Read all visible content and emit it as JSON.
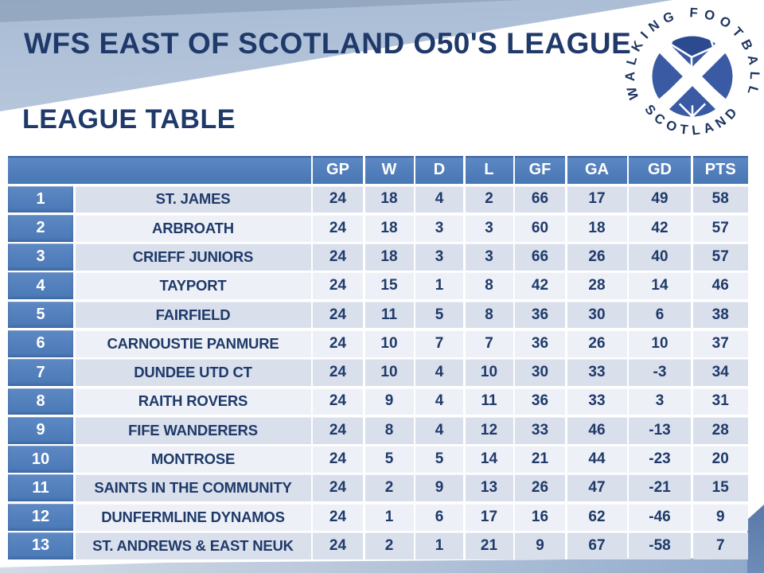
{
  "header": {
    "title": "WFS EAST OF SCOTLAND O50'S LEAGUE",
    "section_title": "LEAGUE TABLE",
    "logo": {
      "arc_top": "WALKING FOOTBALL",
      "arc_bottom": "SCOTLAND"
    }
  },
  "table": {
    "columns": [
      "GP",
      "W",
      "D",
      "L",
      "GF",
      "GA",
      "GD",
      "PTS"
    ],
    "rows": [
      {
        "pos": "1",
        "team": "ST. JAMES",
        "stats": [
          "24",
          "18",
          "4",
          "2",
          "66",
          "17",
          "49",
          "58"
        ]
      },
      {
        "pos": "2",
        "team": "ARBROATH",
        "stats": [
          "24",
          "18",
          "3",
          "3",
          "60",
          "18",
          "42",
          "57"
        ]
      },
      {
        "pos": "3",
        "team": "CRIEFF JUNIORS",
        "stats": [
          "24",
          "18",
          "3",
          "3",
          "66",
          "26",
          "40",
          "57"
        ]
      },
      {
        "pos": "4",
        "team": "TAYPORT",
        "stats": [
          "24",
          "15",
          "1",
          "8",
          "42",
          "28",
          "14",
          "46"
        ]
      },
      {
        "pos": "5",
        "team": "FAIRFIELD",
        "stats": [
          "24",
          "11",
          "5",
          "8",
          "36",
          "30",
          "6",
          "38"
        ]
      },
      {
        "pos": "6",
        "team": "CARNOUSTIE PANMURE",
        "stats": [
          "24",
          "10",
          "7",
          "7",
          "36",
          "26",
          "10",
          "37"
        ]
      },
      {
        "pos": "7",
        "team": "DUNDEE UTD CT",
        "stats": [
          "24",
          "10",
          "4",
          "10",
          "30",
          "33",
          "-3",
          "34"
        ]
      },
      {
        "pos": "8",
        "team": "RAITH ROVERS",
        "stats": [
          "24",
          "9",
          "4",
          "11",
          "36",
          "33",
          "3",
          "31"
        ]
      },
      {
        "pos": "9",
        "team": "FIFE WANDERERS",
        "stats": [
          "24",
          "8",
          "4",
          "12",
          "33",
          "46",
          "-13",
          "28"
        ]
      },
      {
        "pos": "10",
        "team": "MONTROSE",
        "stats": [
          "24",
          "5",
          "5",
          "14",
          "21",
          "44",
          "-23",
          "20"
        ]
      },
      {
        "pos": "11",
        "team": "SAINTS IN THE COMMUNITY",
        "stats": [
          "24",
          "2",
          "9",
          "13",
          "26",
          "47",
          "-21",
          "15"
        ]
      },
      {
        "pos": "12",
        "team": "DUNFERMLINE DYNAMOS",
        "stats": [
          "24",
          "1",
          "6",
          "17",
          "16",
          "62",
          "-46",
          "9"
        ]
      },
      {
        "pos": "13",
        "team": "ST. ANDREWS & EAST NEUK",
        "stats": [
          "24",
          "2",
          "1",
          "21",
          "9",
          "67",
          "-58",
          "7"
        ]
      }
    ]
  },
  "colors": {
    "accent_blue": "#4C7CBA",
    "navy_text": "#1F3A6A",
    "row_shade_dark": "#D9DFEB",
    "row_shade_light": "#EDF0F6",
    "corner_wedge_navy": "#122850"
  }
}
